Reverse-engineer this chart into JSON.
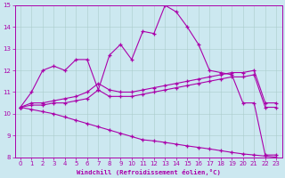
{
  "xlabel": "Windchill (Refroidissement éolien,°C)",
  "bg_color": "#cce8f0",
  "line_color": "#aa00aa",
  "grid_color": "#aacccc",
  "xlim": [
    -0.5,
    23.5
  ],
  "ylim": [
    8,
    15
  ],
  "xticks": [
    0,
    1,
    2,
    3,
    4,
    5,
    6,
    7,
    8,
    9,
    10,
    11,
    12,
    13,
    14,
    15,
    16,
    17,
    18,
    19,
    20,
    21,
    22,
    23
  ],
  "yticks": [
    8,
    9,
    10,
    11,
    12,
    13,
    14,
    15
  ],
  "curve_top_x": [
    0,
    1,
    2,
    3,
    4,
    5,
    6,
    7,
    8,
    9,
    10,
    11,
    12,
    13,
    14,
    15,
    16,
    17,
    18,
    19,
    20,
    21,
    22,
    23
  ],
  "curve_top_y": [
    10.3,
    11.0,
    12.0,
    12.2,
    12.0,
    12.5,
    12.5,
    11.1,
    12.7,
    13.2,
    12.5,
    13.8,
    13.7,
    15.0,
    14.7,
    14.0,
    13.2,
    12.0,
    11.9,
    11.8,
    10.5,
    10.5,
    8.1,
    8.1
  ],
  "curve_mid1_x": [
    0,
    1,
    2,
    3,
    4,
    5,
    6,
    7,
    8,
    9,
    10,
    11,
    12,
    13,
    14,
    15,
    16,
    17,
    18,
    19,
    20,
    21,
    22,
    23
  ],
  "curve_mid1_y": [
    10.3,
    10.5,
    10.5,
    10.6,
    10.7,
    10.8,
    11.0,
    11.4,
    11.1,
    11.0,
    11.0,
    11.1,
    11.2,
    11.3,
    11.4,
    11.5,
    11.6,
    11.7,
    11.8,
    11.9,
    11.9,
    12.0,
    10.5,
    10.5
  ],
  "curve_mid2_x": [
    0,
    1,
    2,
    3,
    4,
    5,
    6,
    7,
    8,
    9,
    10,
    11,
    12,
    13,
    14,
    15,
    16,
    17,
    18,
    19,
    20,
    21,
    22,
    23
  ],
  "curve_mid2_y": [
    10.3,
    10.4,
    10.4,
    10.5,
    10.5,
    10.6,
    10.7,
    11.1,
    10.8,
    10.8,
    10.8,
    10.9,
    11.0,
    11.1,
    11.2,
    11.3,
    11.4,
    11.5,
    11.6,
    11.7,
    11.7,
    11.8,
    10.3,
    10.3
  ],
  "curve_bot_x": [
    0,
    1,
    2,
    3,
    4,
    5,
    6,
    7,
    8,
    9,
    10,
    11,
    12,
    13,
    14,
    15,
    16,
    17,
    18,
    19,
    20,
    21,
    22,
    23
  ],
  "curve_bot_y": [
    10.3,
    10.2,
    10.1,
    10.0,
    9.85,
    9.7,
    9.55,
    9.4,
    9.25,
    9.1,
    8.95,
    8.8,
    8.75,
    8.68,
    8.6,
    8.52,
    8.45,
    8.38,
    8.3,
    8.22,
    8.15,
    8.1,
    8.05,
    8.0
  ]
}
